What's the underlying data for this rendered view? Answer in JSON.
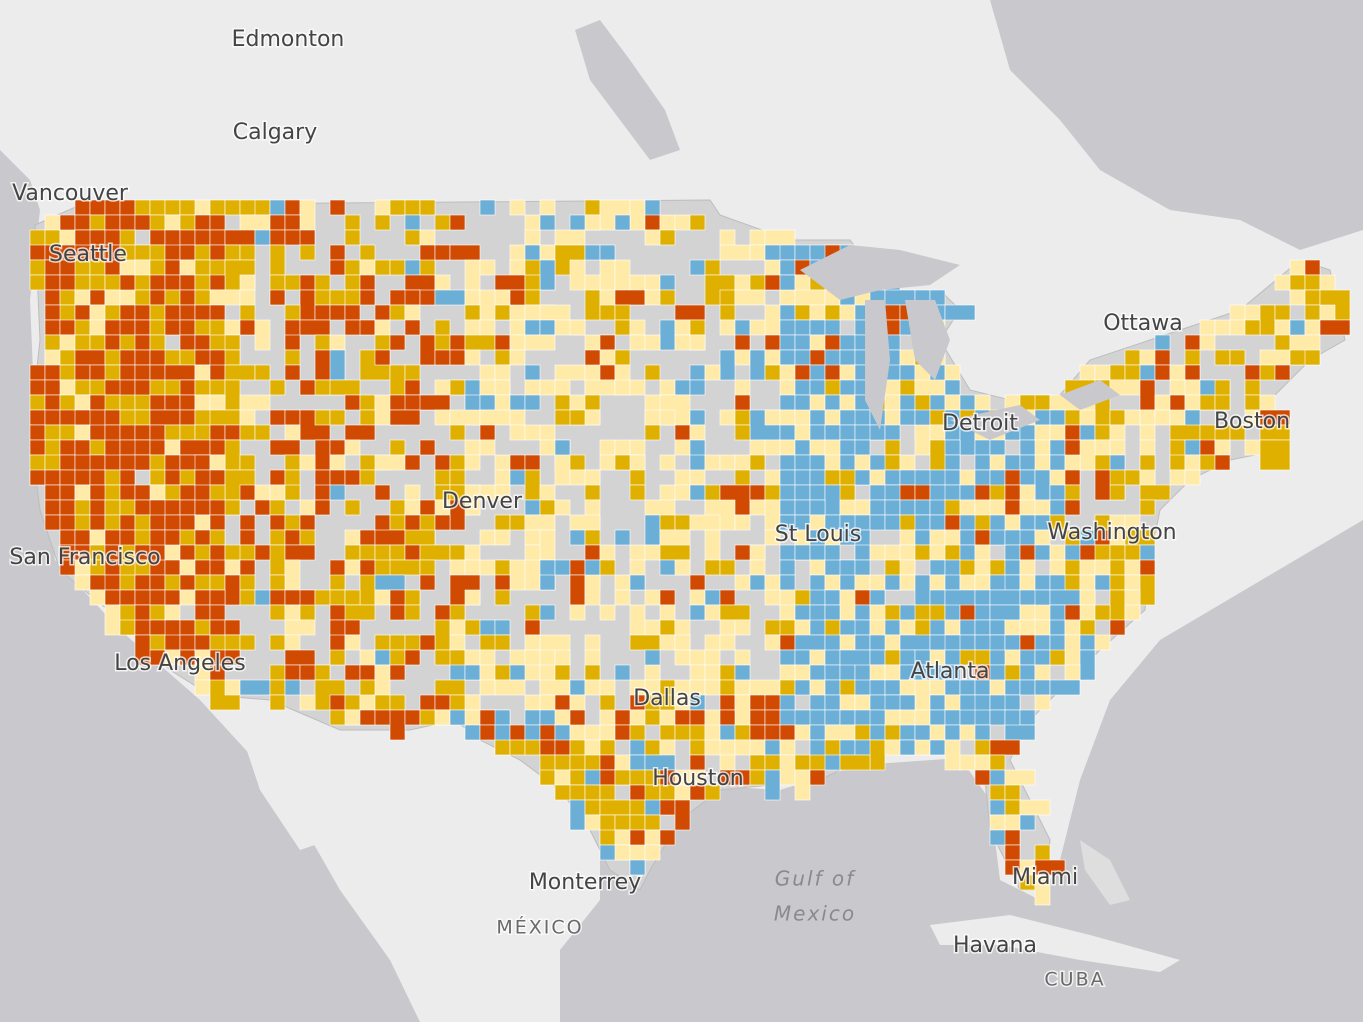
{
  "labels": [
    {
      "text": "Edmonton"
    },
    {
      "text": "Calgary"
    },
    {
      "text": "Vancouver"
    },
    {
      "text": "Seattle"
    },
    {
      "text": "Ottawa"
    },
    {
      "text": "Detroit"
    },
    {
      "text": "Boston"
    },
    {
      "text": "Denver"
    },
    {
      "text": "St Louis"
    },
    {
      "text": "Washington"
    },
    {
      "text": "San Francisco"
    },
    {
      "text": "Los Angeles"
    },
    {
      "text": "Dallas"
    },
    {
      "text": "Atlanta"
    },
    {
      "text": "Houston"
    },
    {
      "text": "Monterrey"
    },
    {
      "text": "MÉXICO"
    },
    {
      "text": "Gulf of"
    },
    {
      "text": "Mexico"
    },
    {
      "text": "Havana"
    },
    {
      "text": "Miami"
    },
    {
      "text": "CUBA"
    }
  ]
}
